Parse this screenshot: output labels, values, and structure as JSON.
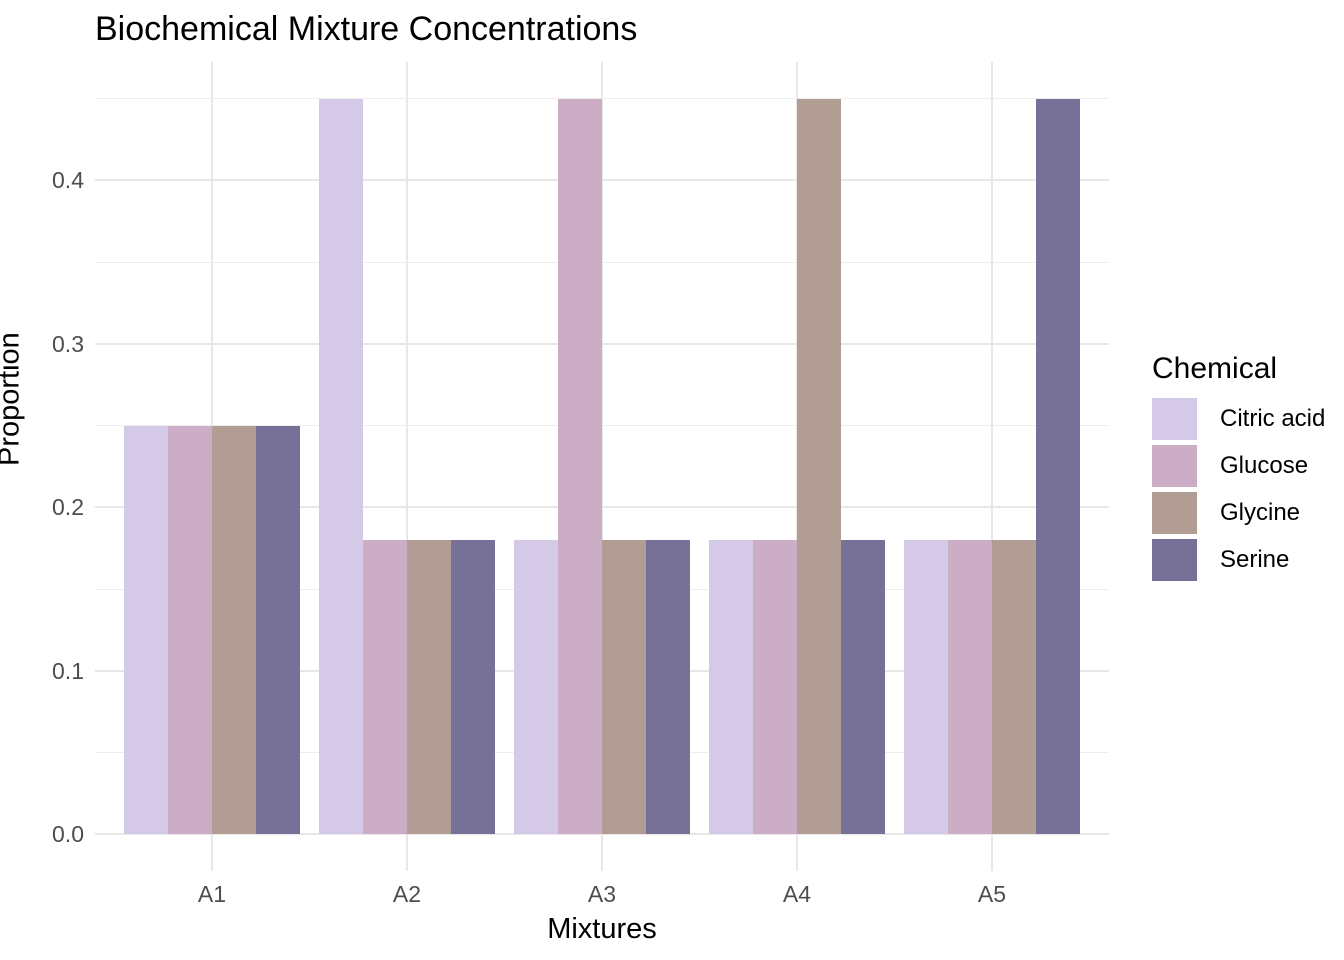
{
  "chart_data": {
    "type": "bar",
    "title": "Biochemical Mixture Concentrations",
    "xlabel": "Mixtures",
    "ylabel": "Proportion",
    "categories": [
      "A1",
      "A2",
      "A3",
      "A4",
      "A5"
    ],
    "series": [
      {
        "name": "Citric acid",
        "color": "#d5c9e8",
        "values": [
          0.25,
          0.45,
          0.18,
          0.18,
          0.18
        ]
      },
      {
        "name": "Glucose",
        "color": "#cbaec6",
        "values": [
          0.25,
          0.18,
          0.45,
          0.18,
          0.18
        ]
      },
      {
        "name": "Glycine",
        "color": "#b19d94",
        "values": [
          0.25,
          0.18,
          0.18,
          0.45,
          0.18
        ]
      },
      {
        "name": "Serine",
        "color": "#777198",
        "values": [
          0.25,
          0.18,
          0.18,
          0.18,
          0.45
        ]
      }
    ],
    "y_ticks": [
      0.0,
      0.1,
      0.2,
      0.3,
      0.4
    ],
    "y_tick_labels": [
      "0.0",
      "0.1",
      "0.2",
      "0.3",
      "0.4"
    ],
    "y_minor_ticks": [
      0.05,
      0.15,
      0.25,
      0.35,
      0.45
    ],
    "ylim": [
      -0.0225,
      0.4725
    ],
    "bar_layout": {
      "group_width_fraction": 0.9,
      "outer_expansion": 0.6
    },
    "grid": {
      "horizontal_major": true,
      "horizontal_minor": true,
      "vertical_major": true
    },
    "legend": {
      "title": "Chemical",
      "position": "right",
      "entries": [
        "Citric acid",
        "Glucose",
        "Glycine",
        "Serine"
      ]
    },
    "colors": {
      "background": "#ffffff",
      "grid_major": "#e7e7e7",
      "grid_minor": "#ededed",
      "tick_label_text": "#4d4d4d",
      "title_text": "#000000"
    }
  }
}
